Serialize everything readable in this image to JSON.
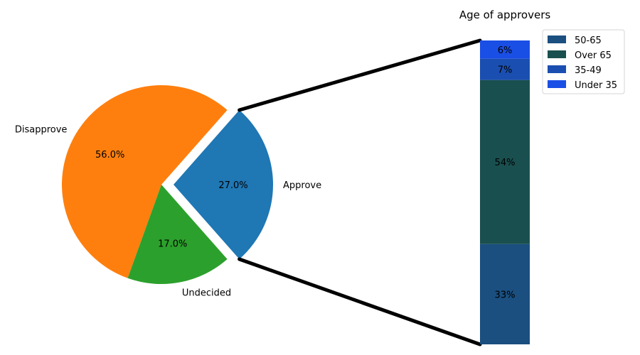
{
  "chart_data": [
    {
      "type": "pie",
      "title": "",
      "categories": [
        "Approve",
        "Disapprove",
        "Undecided"
      ],
      "values": [
        27.0,
        56.0,
        17.0
      ],
      "pct_labels": [
        "27.0%",
        "56.0%",
        "17.0%"
      ],
      "colors": [
        "#1f77b4",
        "#ff7f0e",
        "#2ca02c"
      ],
      "exploded": "Approve",
      "start_angle_deg": -48.6
    },
    {
      "type": "bar",
      "stacked": true,
      "title": "Age of approvers",
      "series": [
        {
          "name": "50-65",
          "value": 0.33,
          "label": "33%",
          "color": "#1a4f80"
        },
        {
          "name": "Over 65",
          "value": 0.54,
          "label": "54%",
          "color": "#1a4f4f"
        },
        {
          "name": "35-49",
          "value": 0.07,
          "label": "7%",
          "color": "#1a4fb1"
        },
        {
          "name": "Under 35",
          "value": 0.06,
          "label": "6%",
          "color": "#1a4fe6"
        }
      ],
      "legend_position": "top-right"
    }
  ]
}
